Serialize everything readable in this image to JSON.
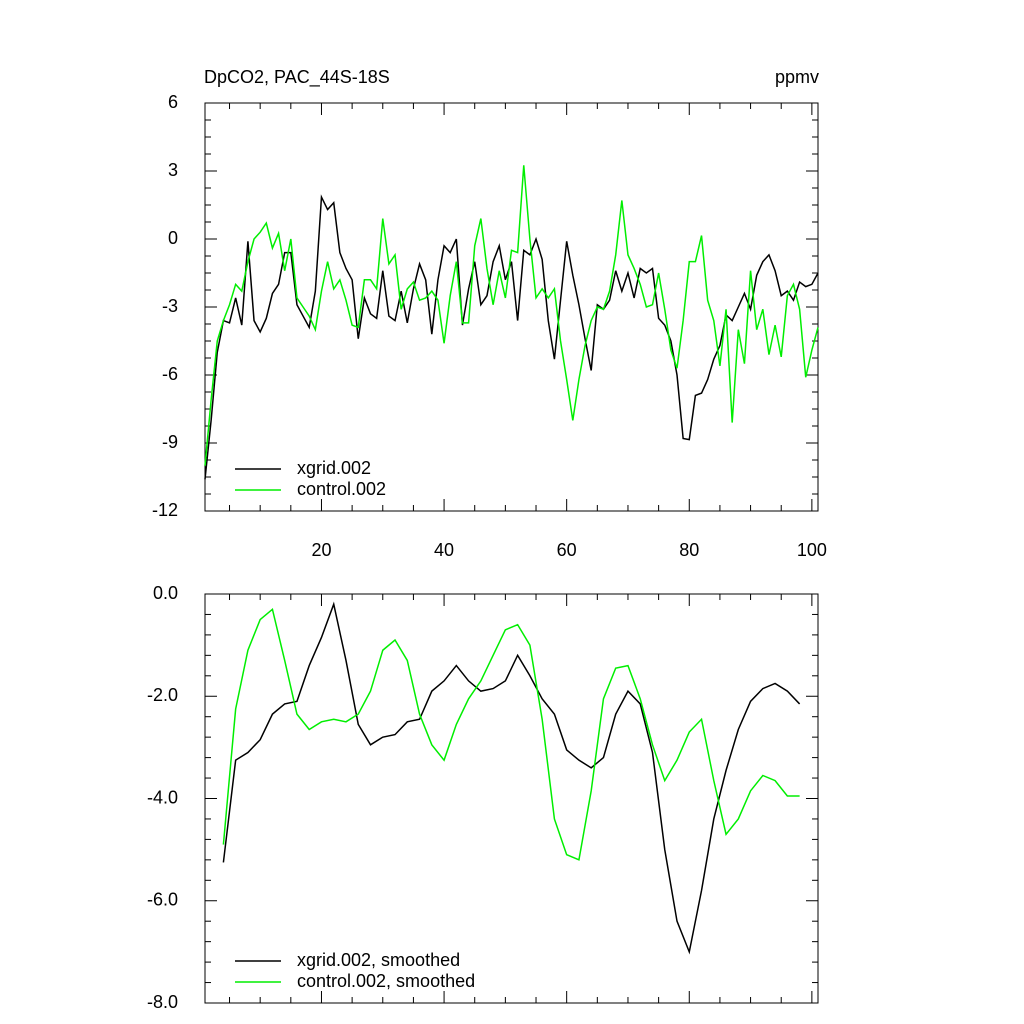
{
  "chart_data": [
    {
      "type": "line",
      "title": "DpCO2, PAC_44S-18S",
      "units": "ppmv",
      "legend": "lower left",
      "xlim": [
        1,
        101
      ],
      "xticks": [
        20,
        40,
        60,
        80,
        100
      ],
      "ylim": [
        -12,
        6
      ],
      "yticks": [
        -12,
        -9,
        -6,
        -3,
        0,
        3,
        6
      ],
      "x": [
        1,
        2,
        3,
        4,
        5,
        6,
        7,
        8,
        9,
        10,
        11,
        12,
        13,
        14,
        15,
        16,
        17,
        18,
        19,
        20,
        21,
        22,
        23,
        24,
        25,
        26,
        27,
        28,
        29,
        30,
        31,
        32,
        33,
        34,
        35,
        36,
        37,
        38,
        39,
        40,
        41,
        42,
        43,
        44,
        45,
        46,
        47,
        48,
        49,
        50,
        51,
        52,
        53,
        54,
        55,
        56,
        57,
        58,
        59,
        60,
        61,
        62,
        63,
        64,
        65,
        66,
        67,
        68,
        69,
        70,
        71,
        72,
        73,
        74,
        75,
        76,
        77,
        78,
        79,
        80,
        81,
        82,
        83,
        84,
        85,
        86,
        87,
        88,
        89,
        90,
        91,
        92,
        93,
        94,
        95,
        96,
        97,
        98,
        99,
        100,
        101
      ],
      "series": [
        {
          "name": "xgrid.002",
          "color": "#000000",
          "values": [
            -10.6,
            -8,
            -5,
            -3.6,
            -3.7,
            -2.6,
            -3.8,
            -0.1,
            -3.6,
            -4.1,
            -3.5,
            -2.4,
            -2,
            -0.6,
            -0.6,
            -2.9,
            -3.4,
            -3.9,
            -2.3,
            1.85,
            1.3,
            1.6,
            -0.6,
            -1.3,
            -1.8,
            -4.4,
            -2.6,
            -3.3,
            -3.5,
            -1.4,
            -3.4,
            -3.6,
            -2.3,
            -3.7,
            -2.2,
            -1.1,
            -1.8,
            -4.2,
            -1.8,
            -0.3,
            -0.6,
            0,
            -3.8,
            -2.2,
            -1,
            -2.9,
            -2.5,
            -1,
            -0.3,
            -1.8,
            -1,
            -3.6,
            -0.5,
            -0.7,
            0,
            -0.9,
            -3.6,
            -5.3,
            -2.7,
            -0.1,
            -1.6,
            -2.9,
            -4.4,
            -5.8,
            -2.9,
            -3.1,
            -2.7,
            -1.4,
            -2.3,
            -1.5,
            -2.6,
            -1.3,
            -1.5,
            -1.3,
            -3.5,
            -3.8,
            -4.5,
            -6,
            -8.8,
            -8.85,
            -6.9,
            -6.8,
            -6.2,
            -5.3,
            -4.7,
            -3.35,
            -3.6,
            -3,
            -2.4,
            -3.1,
            -1.6,
            -1,
            -0.7,
            -1.4,
            -2.5,
            -2.3,
            -2.7,
            -1.9,
            -2.1,
            -2,
            -1.5
          ]
        },
        {
          "name": "control.002",
          "color": "#00ee00",
          "values": [
            -10,
            -7.1,
            -4.5,
            -3.6,
            -2.9,
            -2,
            -2.3,
            -1,
            0,
            0.3,
            0.7,
            -0.4,
            0.25,
            -1.4,
            0,
            -2.6,
            -3,
            -3.4,
            -4,
            -2.3,
            -1,
            -2.2,
            -1.8,
            -2.7,
            -3.8,
            -3.9,
            -1.8,
            -1.8,
            -2.2,
            0.9,
            -1.1,
            -0.7,
            -3.1,
            -2.2,
            -1.9,
            -2.7,
            -2.6,
            -2.3,
            -2.7,
            -4.6,
            -2.5,
            -1,
            -3.7,
            -3.7,
            -0.3,
            0.9,
            -1.3,
            -2.9,
            -1.4,
            -2.6,
            -0.5,
            -0.6,
            3.25,
            0,
            -2.6,
            -2.2,
            -2.6,
            -2.2,
            -4.5,
            -6.2,
            -8,
            -6.2,
            -4.7,
            -3.6,
            -3,
            -3.1,
            -2.3,
            -0.7,
            1.7,
            -0.7,
            -1.3,
            -2,
            -3,
            -2.9,
            -1.5,
            -3.1,
            -4.9,
            -5.7,
            -3.6,
            -1,
            -1,
            0.15,
            -2.7,
            -3.6,
            -5.6,
            -3.1,
            -8.1,
            -4,
            -5.5,
            -1.4,
            -4,
            -3.1,
            -5.1,
            -3.8,
            -5.2,
            -2.5,
            -2,
            -3.1,
            -6.1,
            -4.9,
            -3.9
          ]
        }
      ]
    },
    {
      "type": "line",
      "legend": "lower left",
      "xlim": [
        1,
        101
      ],
      "xticks": [
        20,
        40,
        60,
        80,
        100
      ],
      "ylim": [
        -8,
        0
      ],
      "yticks": [
        {
          "value": -8,
          "label": "-8.0"
        },
        {
          "value": -6,
          "label": "-6.0"
        },
        {
          "value": -4,
          "label": "-4.0"
        },
        {
          "value": -2,
          "label": "-2.0"
        },
        {
          "value": 0,
          "label": "0.0"
        }
      ],
      "x": [
        4,
        6,
        8,
        10,
        12,
        14,
        16,
        18,
        20,
        22,
        24,
        26,
        28,
        30,
        32,
        34,
        36,
        38,
        40,
        42,
        44,
        46,
        48,
        50,
        52,
        54,
        56,
        58,
        60,
        62,
        64,
        66,
        68,
        70,
        72,
        74,
        76,
        78,
        80,
        82,
        84,
        86,
        88,
        90,
        92,
        94,
        96,
        98
      ],
      "series": [
        {
          "name": "xgrid.002, smoothed",
          "color": "#000000",
          "values": [
            -5.25,
            -3.25,
            -3.1,
            -2.85,
            -2.35,
            -2.15,
            -2.1,
            -1.4,
            -0.85,
            -0.2,
            -1.3,
            -2.55,
            -2.95,
            -2.8,
            -2.75,
            -2.5,
            -2.45,
            -1.9,
            -1.7,
            -1.4,
            -1.7,
            -1.9,
            -1.85,
            -1.7,
            -1.2,
            -1.6,
            -2.05,
            -2.35,
            -3.05,
            -3.25,
            -3.4,
            -3.2,
            -2.35,
            -1.9,
            -2.15,
            -3.1,
            -5,
            -6.4,
            -7,
            -5.8,
            -4.4,
            -3.45,
            -2.65,
            -2.1,
            -1.85,
            -1.75,
            -1.9,
            -2.15
          ]
        },
        {
          "name": "control.002, smoothed",
          "color": "#00ee00",
          "values": [
            -4.9,
            -2.25,
            -1.1,
            -0.5,
            -0.3,
            -1.3,
            -2.35,
            -2.65,
            -2.5,
            -2.45,
            -2.5,
            -2.35,
            -1.9,
            -1.1,
            -0.9,
            -1.3,
            -2.35,
            -2.95,
            -3.25,
            -2.55,
            -2.05,
            -1.7,
            -1.2,
            -0.7,
            -0.6,
            -1,
            -2.45,
            -4.4,
            -5.1,
            -5.2,
            -3.85,
            -2.05,
            -1.45,
            -1.4,
            -2.05,
            -2.95,
            -3.65,
            -3.25,
            -2.7,
            -2.45,
            -3.65,
            -4.7,
            -4.4,
            -3.85,
            -3.55,
            -3.65,
            -3.95,
            -3.95
          ]
        }
      ]
    }
  ]
}
